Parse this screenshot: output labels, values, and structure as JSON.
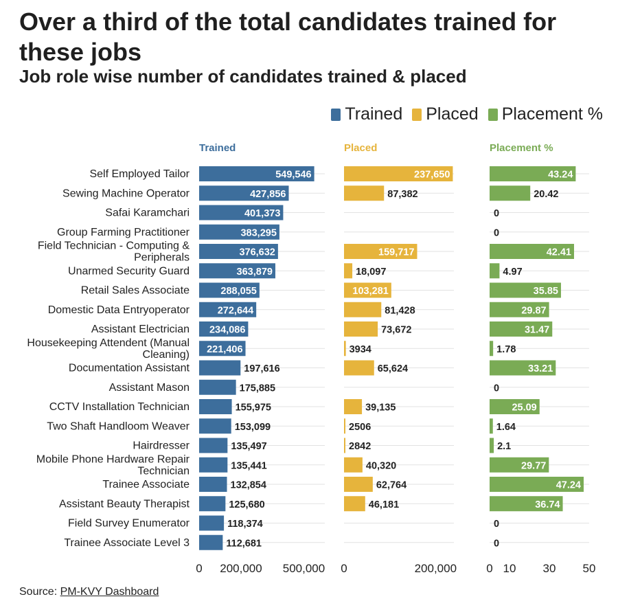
{
  "title": "Over a third of the total candidates trained for these jobs",
  "subtitle": "Job role wise number of candidates trained & placed",
  "legend": [
    {
      "label": "Trained",
      "color": "#3d6e9c"
    },
    {
      "label": "Placed",
      "color": "#e6b43c"
    },
    {
      "label": "Placement %",
      "color": "#7aab55"
    }
  ],
  "source": {
    "prefix": "Source: ",
    "link_text": "PM-KVY Dashboard"
  },
  "chart_data": {
    "type": "bar",
    "orientation": "horizontal",
    "categories": [
      "Self Employed Tailor",
      "Sewing Machine Operator",
      "Safai Karamchari",
      "Group Farming Practitioner",
      "Field Technician - Computing & Peripherals",
      "Unarmed Security Guard",
      "Retail Sales Associate",
      "Domestic Data Entryoperator",
      "Assistant Electrician",
      "Housekeeping Attendent (Manual Cleaning)",
      "Documentation Assistant",
      "Assistant Mason",
      "CCTV Installation Technician",
      "Two Shaft Handloom Weaver",
      "Hairdresser",
      "Mobile Phone Hardware Repair Technician",
      "Trainee Associate",
      "Assistant Beauty Therapist",
      "Field Survey Enumerator",
      "Trainee Associate Level 3"
    ],
    "category_labels": [
      [
        "Self Employed Tailor"
      ],
      [
        "Sewing Machine Operator"
      ],
      [
        "Safai Karamchari"
      ],
      [
        "Group Farming Practitioner"
      ],
      [
        "Field Technician - Computing &",
        "Peripherals"
      ],
      [
        "Unarmed Security Guard"
      ],
      [
        "Retail Sales Associate"
      ],
      [
        "Domestic Data Entryoperator"
      ],
      [
        "Assistant Electrician"
      ],
      [
        "Housekeeping Attendent (Manual",
        "Cleaning)"
      ],
      [
        "Documentation Assistant"
      ],
      [
        "Assistant Mason"
      ],
      [
        "CCTV Installation Technician"
      ],
      [
        "Two Shaft Handloom Weaver"
      ],
      [
        "Hairdresser"
      ],
      [
        "Mobile Phone Hardware Repair",
        "Technician"
      ],
      [
        "Trainee Associate"
      ],
      [
        "Assistant Beauty Therapist"
      ],
      [
        "Field Survey Enumerator"
      ],
      [
        "Trainee Associate Level 3"
      ]
    ],
    "panels": [
      {
        "name": "Trained",
        "color": "#3d6e9c",
        "xlim": [
          0,
          600000
        ],
        "ticks": [
          0,
          200000,
          500000
        ],
        "tick_labels": [
          "0",
          "200,000",
          "500,000"
        ],
        "values": [
          549546,
          427856,
          401373,
          383295,
          376632,
          363879,
          288055,
          272644,
          234086,
          221406,
          197616,
          175885,
          155975,
          153099,
          135497,
          135441,
          132854,
          125680,
          118374,
          112681
        ],
        "labels": [
          "549,546",
          "427,856",
          "401,373",
          "383,295",
          "376,632",
          "363,879",
          "288,055",
          "272,644",
          "234,086",
          "221,406",
          "197,616",
          "175,885",
          "155,975",
          "153,099",
          "135,497",
          "135,441",
          "132,854",
          "125,680",
          "118,374",
          "112,681"
        ]
      },
      {
        "name": "Placed",
        "color": "#e6b43c",
        "xlim": [
          0,
          240000
        ],
        "ticks": [
          0,
          200000
        ],
        "tick_labels": [
          "0",
          "200,000"
        ],
        "values": [
          237650,
          87382,
          null,
          null,
          159717,
          18097,
          103281,
          81428,
          73672,
          3934,
          65624,
          null,
          39135,
          2506,
          2842,
          40320,
          62764,
          46181,
          null,
          null
        ],
        "labels": [
          "237,650",
          "87,382",
          "",
          "",
          "159,717",
          "18,097",
          "103,281",
          "81,428",
          "73,672",
          "3934",
          "65,624",
          "",
          "39,135",
          "2506",
          "2842",
          "40,320",
          "62,764",
          "46,181",
          "",
          ""
        ]
      },
      {
        "name": "Placement %",
        "color": "#7aab55",
        "xlim": [
          0,
          50
        ],
        "ticks": [
          0,
          10,
          30,
          50
        ],
        "tick_labels": [
          "0",
          "10",
          "30",
          "50"
        ],
        "values": [
          43.24,
          20.42,
          0,
          0,
          42.41,
          4.97,
          35.85,
          29.87,
          31.47,
          1.78,
          33.21,
          0,
          25.09,
          1.64,
          2.1,
          29.77,
          47.24,
          36.74,
          0,
          0
        ],
        "labels": [
          "43.24",
          "20.42",
          "0",
          "0",
          "42.41",
          "4.97",
          "35.85",
          "29.87",
          "31.47",
          "1.78",
          "33.21",
          "0",
          "25.09",
          "1.64",
          "2.1",
          "29.77",
          "47.24",
          "36.74",
          "0",
          "0"
        ]
      }
    ],
    "grid": true,
    "legend_position": "top-right"
  }
}
